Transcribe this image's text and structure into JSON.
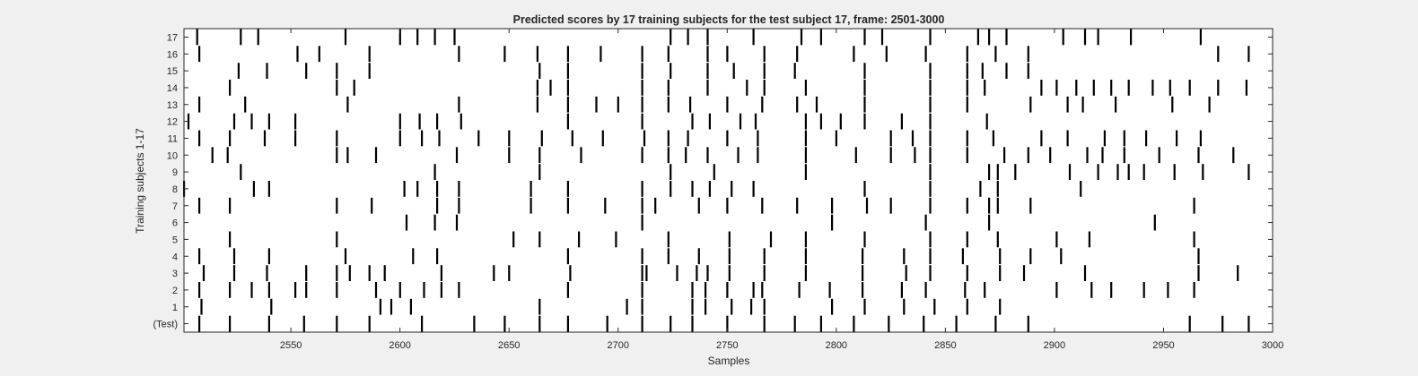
{
  "chart_data": {
    "type": "raster",
    "title": "Predicted scores by 17 training subjects for the test subject 17, frame: 2501-3000",
    "xlabel": "Samples",
    "ylabel": "Training subjects 1-17",
    "xlim": [
      2501,
      3000
    ],
    "xticks": [
      2550,
      2600,
      2650,
      2700,
      2750,
      2800,
      2850,
      2900,
      2950,
      3000
    ],
    "row_labels": [
      "(Test)",
      "1",
      "2",
      "3",
      "4",
      "5",
      "6",
      "7",
      "8",
      "9",
      "10",
      "11",
      "12",
      "13",
      "14",
      "15",
      "16",
      "17"
    ],
    "mark_color": "#000000",
    "background": "#ffffff",
    "grid": false,
    "rows": [
      {
        "label": "(Test)",
        "x": [
          2508,
          2522,
          2540,
          2556,
          2571,
          2586,
          2610,
          2634,
          2648,
          2664,
          2677,
          2695,
          2711,
          2724,
          2734,
          2750,
          2767,
          2781,
          2793,
          2808,
          2824,
          2840,
          2855,
          2873,
          2888,
          2962,
          2977,
          2989
        ]
      },
      {
        "label": "1",
        "x": [
          2509,
          2541,
          2591,
          2596,
          2605,
          2664,
          2704,
          2711,
          2734,
          2740,
          2752,
          2761,
          2767,
          2798,
          2813,
          2831,
          2845,
          2860,
          2875
        ]
      },
      {
        "label": "2",
        "x": [
          2508,
          2522,
          2532,
          2540,
          2552,
          2557,
          2571,
          2589,
          2600,
          2611,
          2619,
          2627,
          2677,
          2711,
          2734,
          2740,
          2750,
          2762,
          2766,
          2783,
          2797,
          2812,
          2830,
          2841,
          2859,
          2868,
          2901,
          2917,
          2926,
          2941,
          2952,
          2964
        ]
      },
      {
        "label": "3",
        "x": [
          2510,
          2524,
          2539,
          2557,
          2571,
          2577,
          2586,
          2593,
          2619,
          2643,
          2650,
          2678,
          2711,
          2713,
          2727,
          2736,
          2741,
          2751,
          2767,
          2786,
          2812,
          2832,
          2843,
          2860,
          2875,
          2886,
          2914,
          2966,
          2984
        ]
      },
      {
        "label": "4",
        "x": [
          2508,
          2524,
          2540,
          2575,
          2606,
          2617,
          2677,
          2711,
          2723,
          2737,
          2751,
          2767,
          2786,
          2812,
          2831,
          2843,
          2858,
          2875,
          2889,
          2903,
          2966
        ]
      },
      {
        "label": "5",
        "x": [
          2522,
          2571,
          2652,
          2664,
          2682,
          2699,
          2723,
          2751,
          2770,
          2786,
          2813,
          2843,
          2860,
          2874,
          2901,
          2916,
          2964
        ]
      },
      {
        "label": "6",
        "x": [
          2603,
          2616,
          2626,
          2711,
          2798,
          2841,
          2870,
          2946
        ]
      },
      {
        "label": "7",
        "x": [
          2508,
          2522,
          2571,
          2587,
          2617,
          2627,
          2660,
          2677,
          2694,
          2711,
          2717,
          2737,
          2750,
          2766,
          2782,
          2798,
          2814,
          2825,
          2843,
          2860,
          2870,
          2874,
          2889,
          2964
        ]
      },
      {
        "label": "8",
        "x": [
          2501,
          2533,
          2540,
          2602,
          2608,
          2617,
          2627,
          2660,
          2677,
          2711,
          2724,
          2734,
          2742,
          2752,
          2762,
          2813,
          2843,
          2866,
          2874,
          2912
        ]
      },
      {
        "label": "9",
        "x": [
          2527,
          2616,
          2664,
          2724,
          2744,
          2786,
          2843,
          2870,
          2874,
          2882,
          2907,
          2920,
          2929,
          2934,
          2941,
          2955,
          2968,
          2989
        ]
      },
      {
        "label": "10",
        "x": [
          2514,
          2521,
          2571,
          2576,
          2589,
          2626,
          2650,
          2664,
          2683,
          2711,
          2723,
          2731,
          2741,
          2755,
          2764,
          2786,
          2809,
          2825,
          2836,
          2843,
          2860,
          2877,
          2888,
          2898,
          2915,
          2922,
          2932,
          2948,
          2966,
          2982
        ]
      },
      {
        "label": "11",
        "x": [
          2508,
          2522,
          2538,
          2552,
          2571,
          2600,
          2610,
          2618,
          2636,
          2650,
          2665,
          2679,
          2693,
          2712,
          2723,
          2732,
          2750,
          2764,
          2786,
          2800,
          2825,
          2835,
          2843,
          2860,
          2872,
          2894,
          2906,
          2923,
          2932,
          2942,
          2956,
          2967
        ]
      },
      {
        "label": "12",
        "x": [
          2503,
          2524,
          2532,
          2540,
          2552,
          2600,
          2609,
          2617,
          2628,
          2677,
          2711,
          2734,
          2742,
          2756,
          2763,
          2786,
          2793,
          2802,
          2813,
          2830,
          2843,
          2869
        ]
      },
      {
        "label": "13",
        "x": [
          2508,
          2529,
          2576,
          2627,
          2663,
          2677,
          2690,
          2700,
          2711,
          2723,
          2733,
          2750,
          2766,
          2782,
          2791,
          2813,
          2843,
          2860,
          2889,
          2906,
          2913,
          2928,
          2954,
          2971
        ]
      },
      {
        "label": "14",
        "x": [
          2522,
          2571,
          2579,
          2663,
          2669,
          2677,
          2711,
          2723,
          2741,
          2759,
          2767,
          2786,
          2813,
          2843,
          2860,
          2868,
          2894,
          2901,
          2910,
          2918,
          2926,
          2934,
          2945,
          2953,
          2962,
          2975,
          2988
        ]
      },
      {
        "label": "15",
        "x": [
          2526,
          2539,
          2557,
          2571,
          2586,
          2664,
          2677,
          2711,
          2724,
          2741,
          2753,
          2767,
          2781,
          2813,
          2843,
          2860,
          2867,
          2878,
          2888
        ]
      },
      {
        "label": "16",
        "x": [
          2508,
          2553,
          2563,
          2586,
          2627,
          2648,
          2663,
          2677,
          2692,
          2711,
          2723,
          2741,
          2750,
          2767,
          2782,
          2808,
          2823,
          2841,
          2860,
          2873,
          2888,
          2975,
          2989
        ]
      },
      {
        "label": "17",
        "x": [
          2507,
          2527,
          2535,
          2575,
          2600,
          2608,
          2616,
          2625,
          2724,
          2732,
          2741,
          2762,
          2784,
          2793,
          2813,
          2821,
          2843,
          2865,
          2870,
          2878,
          2904,
          2914,
          2920,
          2935,
          2967
        ]
      }
    ]
  }
}
